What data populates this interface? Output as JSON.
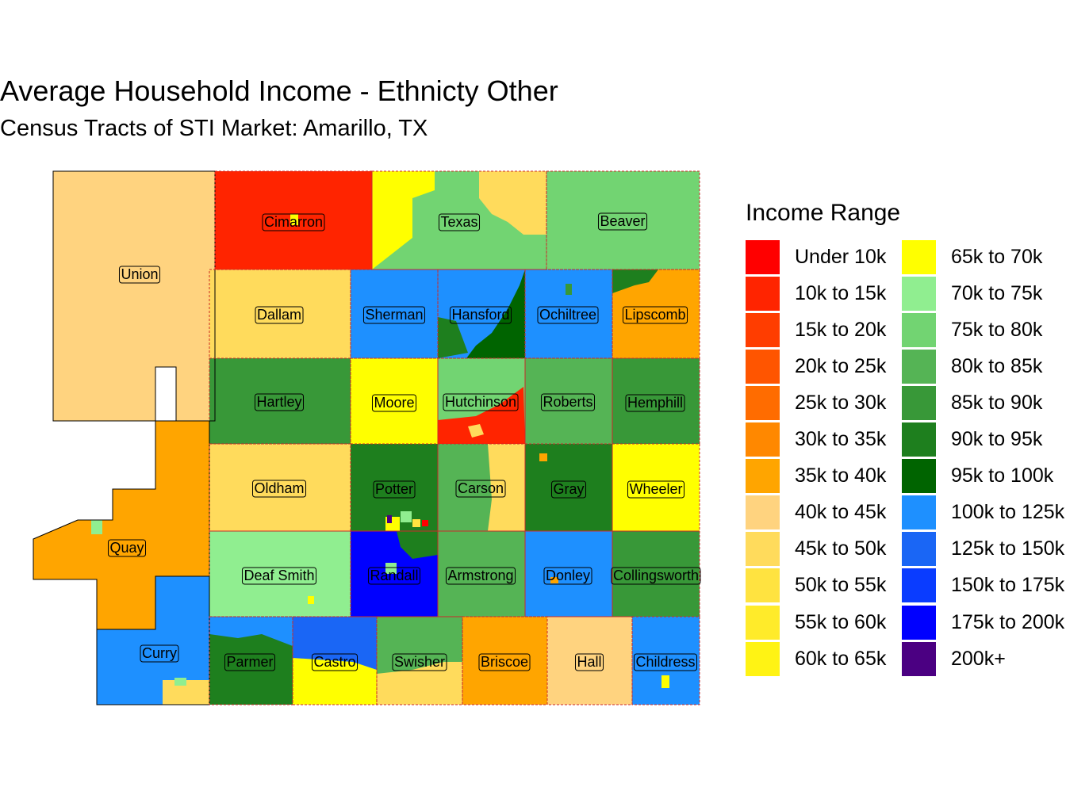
{
  "title": "Average Household Income - Ethnicty Other",
  "subtitle": "Census Tracts of STI Market: Amarillo, TX",
  "legend": {
    "title": "Income Range",
    "items": [
      {
        "label": "Under 10k",
        "color": "#ff0000"
      },
      {
        "label": "10k to 15k",
        "color": "#ff2400"
      },
      {
        "label": "15k to 20k",
        "color": "#ff3d00"
      },
      {
        "label": "20k to 25k",
        "color": "#ff5500"
      },
      {
        "label": "25k to 30k",
        "color": "#ff6c00"
      },
      {
        "label": "30k to 35k",
        "color": "#ff8800"
      },
      {
        "label": "35k to 40k",
        "color": "#ffa500"
      },
      {
        "label": "40k to 45k",
        "color": "#ffd37f"
      },
      {
        "label": "45k to 50k",
        "color": "#ffdb5c"
      },
      {
        "label": "50k to 55k",
        "color": "#ffe340"
      },
      {
        "label": "55k to 60k",
        "color": "#ffeb2a"
      },
      {
        "label": "60k to 65k",
        "color": "#fff314"
      },
      {
        "label": "65k to 70k",
        "color": "#ffff00"
      },
      {
        "label": "70k to 75k",
        "color": "#90ee90"
      },
      {
        "label": "75k to 80k",
        "color": "#72d472"
      },
      {
        "label": "80k to 85k",
        "color": "#55b455"
      },
      {
        "label": "85k to 90k",
        "color": "#389838"
      },
      {
        "label": "90k to 95k",
        "color": "#1e7f1e"
      },
      {
        "label": "95k to 100k",
        "color": "#006400"
      },
      {
        "label": "100k to 125k",
        "color": "#1e90ff"
      },
      {
        "label": "125k to 150k",
        "color": "#1a66f5"
      },
      {
        "label": "150k to 175k",
        "color": "#0a3cff"
      },
      {
        "label": "175k to 200k",
        "color": "#0000ff"
      },
      {
        "label": "200k+",
        "color": "#4b0082"
      }
    ]
  },
  "counties": [
    {
      "name": "Union",
      "range": "40k to 45k"
    },
    {
      "name": "Cimarron",
      "range": "10k to 15k"
    },
    {
      "name": "Texas",
      "range": "75k to 80k"
    },
    {
      "name": "Beaver",
      "range": "75k to 80k"
    },
    {
      "name": "Dallam",
      "range": "45k to 50k"
    },
    {
      "name": "Sherman",
      "range": "100k to 125k"
    },
    {
      "name": "Hansford",
      "range": "100k to 125k"
    },
    {
      "name": "Ochiltree",
      "range": "100k to 125k"
    },
    {
      "name": "Lipscomb",
      "range": "35k to 40k"
    },
    {
      "name": "Hartley",
      "range": "85k to 90k"
    },
    {
      "name": "Moore",
      "range": "65k to 70k"
    },
    {
      "name": "Hutchinson",
      "range": "75k to 80k"
    },
    {
      "name": "Roberts",
      "range": "80k to 85k"
    },
    {
      "name": "Hemphill",
      "range": "85k to 90k"
    },
    {
      "name": "Quay",
      "range": "35k to 40k"
    },
    {
      "name": "Oldham",
      "range": "45k to 50k"
    },
    {
      "name": "Potter",
      "range": "90k to 95k"
    },
    {
      "name": "Carson",
      "range": "80k to 85k"
    },
    {
      "name": "Gray",
      "range": "90k to 95k"
    },
    {
      "name": "Wheeler",
      "range": "65k to 70k"
    },
    {
      "name": "Deaf Smith",
      "range": "70k to 75k"
    },
    {
      "name": "Randall",
      "range": "175k to 200k"
    },
    {
      "name": "Armstrong",
      "range": "80k to 85k"
    },
    {
      "name": "Donley",
      "range": "100k to 125k"
    },
    {
      "name": "Collingsworth",
      "range": "85k to 90k"
    },
    {
      "name": "Curry",
      "range": "100k to 125k"
    },
    {
      "name": "Parmer",
      "range": "90k to 95k"
    },
    {
      "name": "Castro",
      "range": "65k to 70k"
    },
    {
      "name": "Swisher",
      "range": "80k to 85k"
    },
    {
      "name": "Briscoe",
      "range": "35k to 40k"
    },
    {
      "name": "Hall",
      "range": "40k to 45k"
    },
    {
      "name": "Childress",
      "range": "100k to 125k"
    }
  ]
}
